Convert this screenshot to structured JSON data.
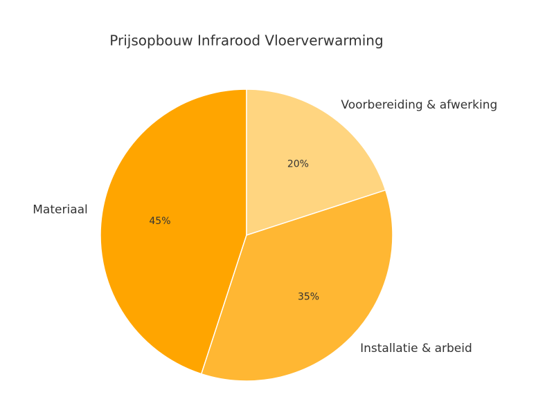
{
  "chart_data": {
    "type": "pie",
    "title": "Prijsopbouw Infrarood Vloerverwarming",
    "categories": [
      "Materiaal",
      "Installatie & arbeid",
      "Voorbereiding & afwerking"
    ],
    "values": [
      45,
      35,
      20
    ],
    "value_labels": [
      "45%",
      "35%",
      "20%"
    ],
    "colors": [
      "#ffa500",
      "#ffb733",
      "#ffd580"
    ]
  }
}
